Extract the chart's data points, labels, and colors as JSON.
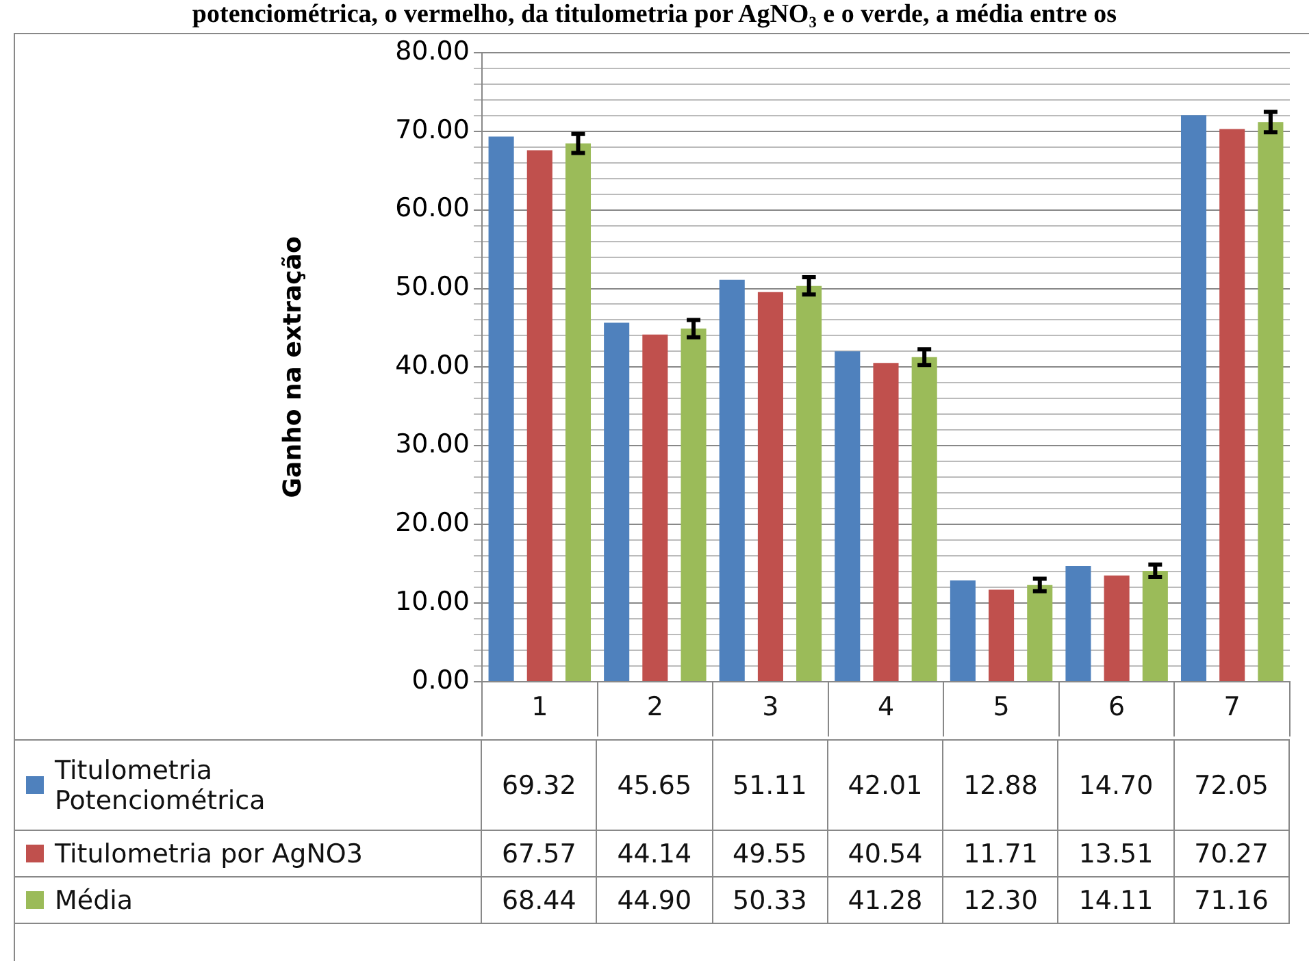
{
  "chart_data": {
    "type": "bar",
    "title": "potenciométrica, o vermelho, da titulometria por AgNO₃ e o verde, a média entre os",
    "ylabel": "Ganho na extração",
    "categories": [
      "1",
      "2",
      "3",
      "4",
      "5",
      "6",
      "7"
    ],
    "series": [
      {
        "name": "Titulometria Potenciométrica",
        "color": "#4f81bd",
        "values": [
          69.32,
          45.65,
          51.11,
          42.01,
          12.88,
          14.7,
          72.05
        ],
        "value_labels": [
          "69.32",
          "45.65",
          "51.11",
          "42.01",
          "12.88",
          "14.70",
          "72.05"
        ]
      },
      {
        "name": "Titulometria por AgNO3",
        "color": "#c0504d",
        "values": [
          67.57,
          44.14,
          49.55,
          40.54,
          11.71,
          13.51,
          70.27
        ],
        "value_labels": [
          "67.57",
          "44.14",
          "49.55",
          "40.54",
          "11.71",
          "13.51",
          "70.27"
        ]
      },
      {
        "name": "Média",
        "color": "#9bbb59",
        "values": [
          68.44,
          44.9,
          50.33,
          41.28,
          12.3,
          14.11,
          71.16
        ],
        "value_labels": [
          "68.44",
          "44.90",
          "50.33",
          "41.28",
          "12.30",
          "14.11",
          "71.16"
        ],
        "errors": [
          1.2,
          1.1,
          1.1,
          1.0,
          0.8,
          0.8,
          1.3
        ]
      }
    ],
    "ylim": [
      0,
      80
    ],
    "yticks": [
      {
        "value": 0,
        "label": "0.00"
      },
      {
        "value": 2,
        "label": null
      },
      {
        "value": 4,
        "label": null
      },
      {
        "value": 6,
        "label": null
      },
      {
        "value": 8,
        "label": null
      },
      {
        "value": 10,
        "label": "10.00"
      },
      {
        "value": 12,
        "label": null
      },
      {
        "value": 14,
        "label": null
      },
      {
        "value": 16,
        "label": null
      },
      {
        "value": 18,
        "label": null
      },
      {
        "value": 20,
        "label": "20.00"
      },
      {
        "value": 22,
        "label": null
      },
      {
        "value": 24,
        "label": null
      },
      {
        "value": 26,
        "label": null
      },
      {
        "value": 28,
        "label": null
      },
      {
        "value": 30,
        "label": "30.00"
      },
      {
        "value": 32,
        "label": null
      },
      {
        "value": 34,
        "label": null
      },
      {
        "value": 36,
        "label": null
      },
      {
        "value": 38,
        "label": null
      },
      {
        "value": 40,
        "label": "40.00"
      },
      {
        "value": 42,
        "label": null
      },
      {
        "value": 44,
        "label": null
      },
      {
        "value": 46,
        "label": null
      },
      {
        "value": 48,
        "label": null
      },
      {
        "value": 50,
        "label": "50.00"
      },
      {
        "value": 52,
        "label": null
      },
      {
        "value": 54,
        "label": null
      },
      {
        "value": 56,
        "label": null
      },
      {
        "value": 58,
        "label": null
      },
      {
        "value": 60,
        "label": "60.00"
      },
      {
        "value": 62,
        "label": null
      },
      {
        "value": 64,
        "label": null
      },
      {
        "value": 66,
        "label": null
      },
      {
        "value": 68,
        "label": null
      },
      {
        "value": 70,
        "label": "70.00"
      },
      {
        "value": 72,
        "label": null
      },
      {
        "value": 74,
        "label": null
      },
      {
        "value": 76,
        "label": null
      },
      {
        "value": 78,
        "label": null
      },
      {
        "value": 80,
        "label": "80.00"
      }
    ],
    "grid": "y",
    "legend": "bottom"
  }
}
